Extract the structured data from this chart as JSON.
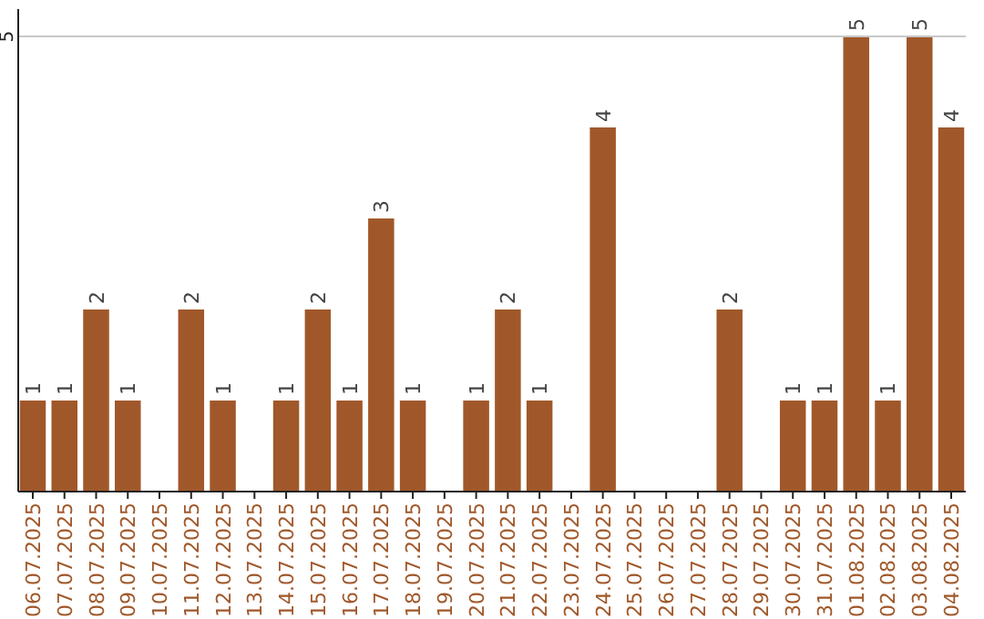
{
  "chart_data": {
    "type": "bar",
    "categories": [
      "06.07.2025",
      "07.07.2025",
      "08.07.2025",
      "09.07.2025",
      "10.07.2025",
      "11.07.2025",
      "12.07.2025",
      "13.07.2025",
      "14.07.2025",
      "15.07.2025",
      "16.07.2025",
      "17.07.2025",
      "18.07.2025",
      "19.07.2025",
      "20.07.2025",
      "21.07.2025",
      "22.07.2025",
      "23.07.2025",
      "24.07.2025",
      "25.07.2025",
      "26.07.2025",
      "27.07.2025",
      "28.07.2025",
      "29.07.2025",
      "30.07.2025",
      "31.07.2025",
      "01.08.2025",
      "02.08.2025",
      "03.08.2025",
      "04.08.2025"
    ],
    "values": [
      1,
      1,
      2,
      1,
      null,
      2,
      1,
      null,
      1,
      2,
      1,
      3,
      1,
      null,
      1,
      2,
      1,
      null,
      4,
      null,
      null,
      null,
      2,
      null,
      1,
      1,
      5,
      1,
      5,
      4
    ],
    "color": "#a0582a",
    "ylim": [
      0,
      5.3
    ],
    "yticks": [
      5
    ],
    "grid": "y",
    "data_labels": true
  }
}
